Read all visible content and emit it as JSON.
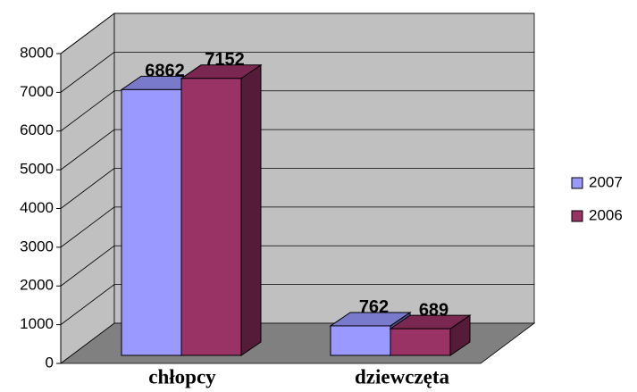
{
  "chart_data": {
    "type": "bar3d",
    "categories": [
      "chłopcy",
      "dziewczęta"
    ],
    "series": [
      {
        "name": "2007",
        "color": "#9999ff",
        "values": [
          6862,
          762
        ]
      },
      {
        "name": "2006",
        "color": "#993366",
        "values": [
          7152,
          689
        ]
      }
    ],
    "ylim": [
      0,
      8000
    ],
    "yticks": [
      0,
      1000,
      2000,
      3000,
      4000,
      5000,
      6000,
      7000,
      8000
    ],
    "grid": true,
    "legend": "right"
  }
}
